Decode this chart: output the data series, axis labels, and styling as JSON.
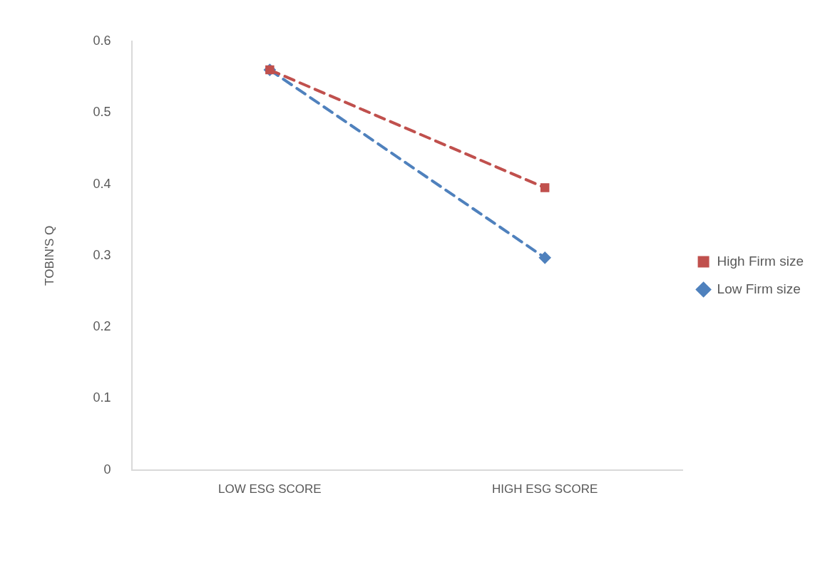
{
  "chart_data": {
    "type": "line",
    "ylabel": "TOBIN'S Q",
    "categories": [
      "LOW ESG SCORE",
      "HIGH ESG SCORE"
    ],
    "series": [
      {
        "name": "Low Firm size",
        "color": "#4f81bd",
        "values": [
          0.56,
          0.297
        ],
        "marker": "diamond",
        "line_style": "dashed"
      },
      {
        "name": "High Firm size",
        "color": "#c0504d",
        "values": [
          0.56,
          0.395
        ],
        "marker": "square",
        "line_style": "dashed"
      }
    ],
    "ylim": [
      0,
      0.6
    ],
    "yticks": [
      0,
      0.1,
      0.2,
      0.3,
      0.4,
      0.5,
      0.6
    ],
    "grid": false,
    "legend": "right"
  }
}
